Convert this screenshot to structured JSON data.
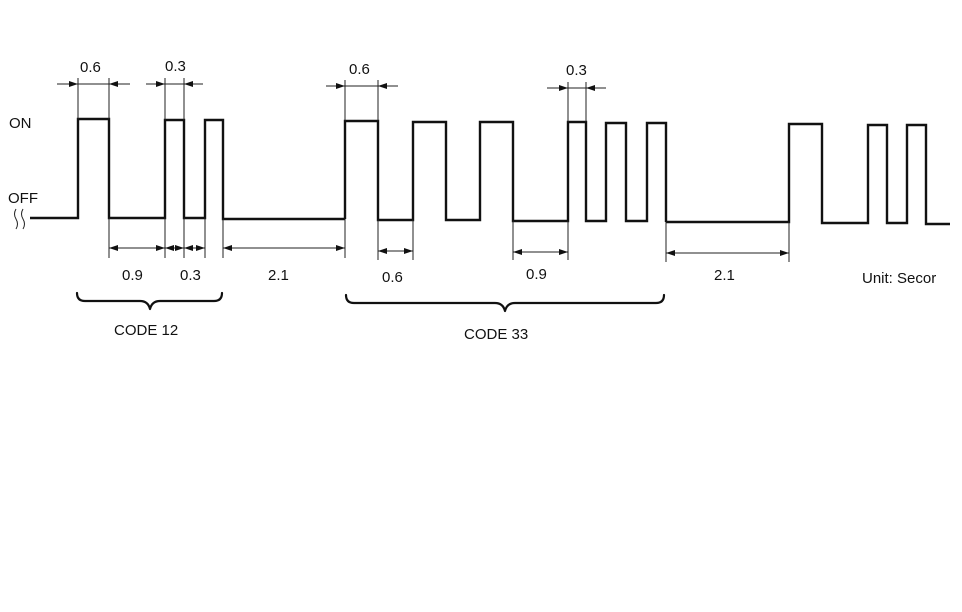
{
  "states": {
    "on": "ON",
    "off": "OFF"
  },
  "timing_labels": {
    "code12_long_pulse": "0.6",
    "code12_short_pulse": "0.3",
    "code12_long_gap": "0.9",
    "code12_short_gap": "0.3",
    "code12_pause": "2.1",
    "code33_long_pulse": "0.6",
    "code33_short_pulse": "0.3",
    "code33_long_gap": "0.6",
    "code33_digit_gap": "0.9",
    "code33_pause": "2.1"
  },
  "codes": {
    "code12": "CODE 12",
    "code33": "CODE 33"
  },
  "unit_label": "Unit: Secor"
}
